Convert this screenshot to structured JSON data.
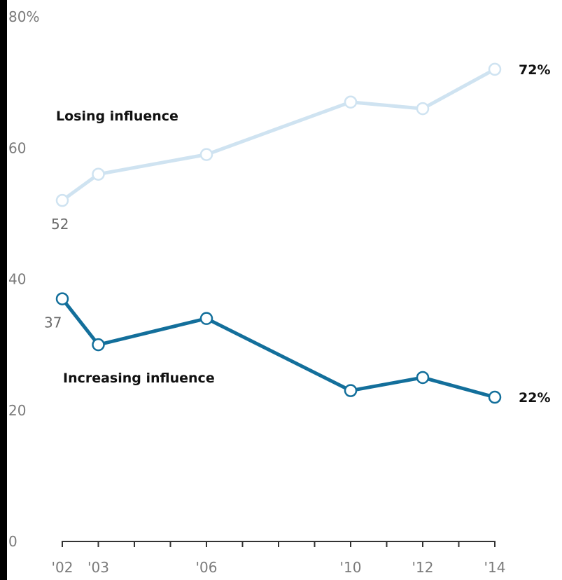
{
  "colors": {
    "losing": "#cfe3f1",
    "increasing": "#136f9b",
    "axis": "#333333",
    "tick_text": "#7a7a7a"
  },
  "chart_data": {
    "type": "line",
    "x": [
      2002,
      2003,
      2006,
      2010,
      2012,
      2014
    ],
    "x_tick_labels": [
      "'02",
      "'03",
      "'06",
      "'10",
      "'12",
      "'14"
    ],
    "ylim": [
      0,
      80
    ],
    "y_ticks": [
      0,
      20,
      40,
      60,
      80
    ],
    "y_tick_labels": [
      "0",
      "20",
      "40",
      "60",
      "80%"
    ],
    "grid": false,
    "series": [
      {
        "name": "Losing influence",
        "color_key": "losing",
        "values": [
          52,
          56,
          59,
          67,
          66,
          72
        ],
        "start_label": "52",
        "end_label": "72%"
      },
      {
        "name": "Increasing influence",
        "color_key": "increasing",
        "values": [
          37,
          30,
          34,
          23,
          25,
          22
        ],
        "start_label": "37",
        "end_label": "22%"
      }
    ]
  }
}
